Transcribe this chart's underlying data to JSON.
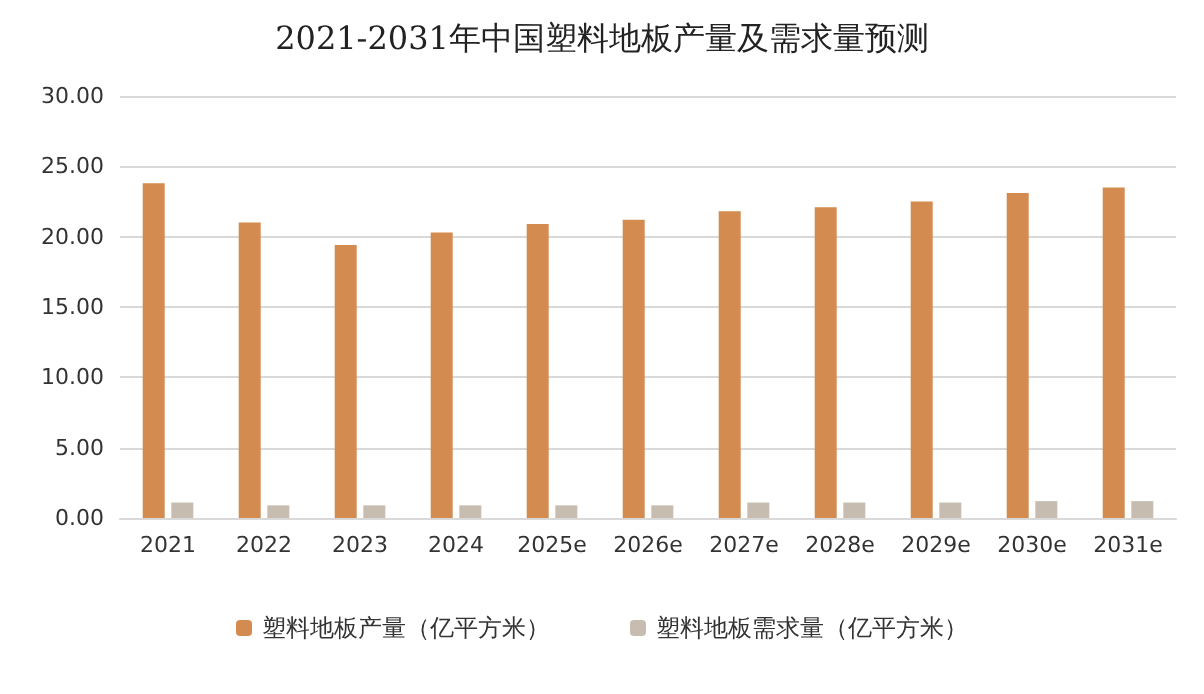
{
  "chart_data": {
    "type": "bar",
    "title": "2021-2031年中国塑料地板产量及需求量预测",
    "categories": [
      "2021",
      "2022",
      "2023",
      "2024",
      "2025e",
      "2026e",
      "2027e",
      "2028e",
      "2029e",
      "2030e",
      "2031e"
    ],
    "series": [
      {
        "name": "塑料地板产量（亿平方米）",
        "color": "#d38b4f",
        "values": [
          23.8,
          21.0,
          19.4,
          20.3,
          20.9,
          21.2,
          21.8,
          22.1,
          22.5,
          23.1,
          23.5
        ]
      },
      {
        "name": "塑料地板需求量（亿平方米）",
        "color": "#c7bcb0",
        "values": [
          1.1,
          0.9,
          0.9,
          0.9,
          0.9,
          0.9,
          1.1,
          1.1,
          1.1,
          1.2,
          1.2
        ]
      }
    ],
    "ylim": [
      0,
      30
    ],
    "yticks": [
      {
        "value": 0,
        "label": "0.00"
      },
      {
        "value": 5,
        "label": "5.00"
      },
      {
        "value": 10,
        "label": "10.00"
      },
      {
        "value": 15,
        "label": "15.00"
      },
      {
        "value": 20,
        "label": "20.00"
      },
      {
        "value": 25,
        "label": "25.00"
      },
      {
        "value": 30,
        "label": "30.00"
      }
    ],
    "grid": "y",
    "legend": "bottom"
  }
}
